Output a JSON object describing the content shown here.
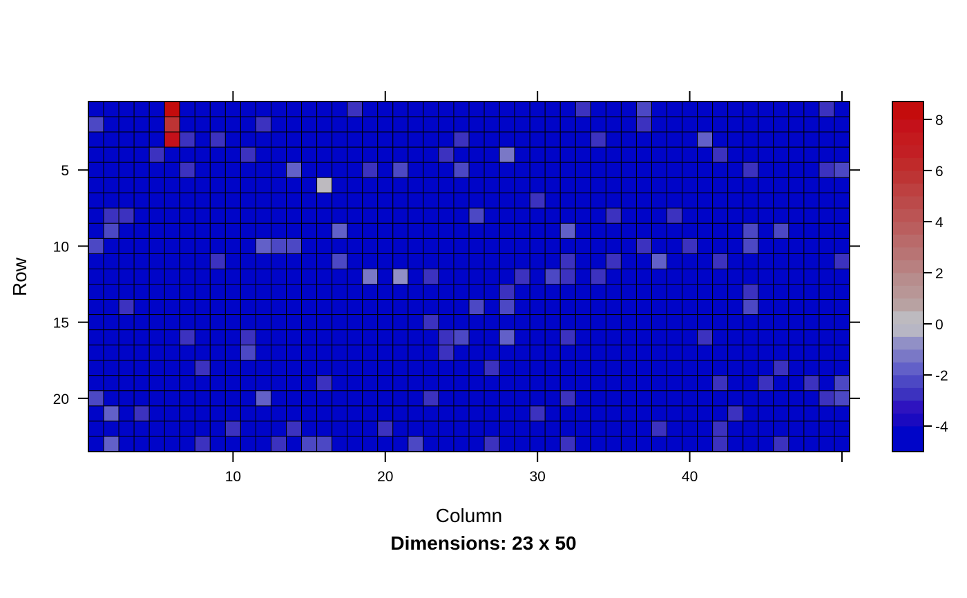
{
  "chart_data": {
    "type": "heatmap",
    "xlabel": "Column",
    "ylabel": "Row",
    "subtitle": "Dimensions: 23 x 50",
    "n_rows": 23,
    "n_cols": 50,
    "x_ticks": [
      10,
      20,
      30,
      40
    ],
    "y_ticks": [
      5,
      10,
      15,
      20
    ],
    "y_axis_reversed": true,
    "colorbar": {
      "range": [
        -5,
        8.7
      ],
      "ticks": [
        -4,
        -2,
        0,
        2,
        4,
        6,
        8
      ],
      "tick_labels": [
        "-4",
        "-2",
        "0",
        "2",
        "4",
        "6",
        "8"
      ],
      "levels": [
        {
          "from": -5.0,
          "to": -4.0,
          "color": "#0005c8"
        },
        {
          "from": -4.0,
          "to": -3.5,
          "color": "#1a0ac0"
        },
        {
          "from": -3.5,
          "to": -3.0,
          "color": "#2e13bf"
        },
        {
          "from": -3.0,
          "to": -2.5,
          "color": "#3c32bf"
        },
        {
          "from": -2.5,
          "to": -2.0,
          "color": "#4c48c4"
        },
        {
          "from": -2.0,
          "to": -1.5,
          "color": "#6260c8"
        },
        {
          "from": -1.5,
          "to": -1.0,
          "color": "#7a78c6"
        },
        {
          "from": -1.0,
          "to": -0.5,
          "color": "#9190c6"
        },
        {
          "from": -0.5,
          "to": 0.0,
          "color": "#b7b6c4"
        },
        {
          "from": 0.0,
          "to": 0.5,
          "color": "#bdbabf"
        },
        {
          "from": 0.5,
          "to": 1.0,
          "color": "#b8a2a2"
        },
        {
          "from": 1.0,
          "to": 1.5,
          "color": "#b89696"
        },
        {
          "from": 1.5,
          "to": 2.0,
          "color": "#b78d8d"
        },
        {
          "from": 2.0,
          "to": 2.5,
          "color": "#b88080"
        },
        {
          "from": 2.5,
          "to": 3.0,
          "color": "#b87474"
        },
        {
          "from": 3.0,
          "to": 3.5,
          "color": "#b96a6a"
        },
        {
          "from": 3.5,
          "to": 4.0,
          "color": "#ba5e5e"
        },
        {
          "from": 4.0,
          "to": 4.5,
          "color": "#bb5454"
        },
        {
          "from": 4.5,
          "to": 5.0,
          "color": "#bb4a4a"
        },
        {
          "from": 5.0,
          "to": 5.5,
          "color": "#bd4040"
        },
        {
          "from": 5.5,
          "to": 6.0,
          "color": "#bd3434"
        },
        {
          "from": 6.0,
          "to": 6.5,
          "color": "#c02a2a"
        },
        {
          "from": 6.5,
          "to": 7.0,
          "color": "#c21f24"
        },
        {
          "from": 7.0,
          "to": 7.5,
          "color": "#c41a1e"
        },
        {
          "from": 7.5,
          "to": 8.0,
          "color": "#c4111a"
        },
        {
          "from": 8.0,
          "to": 8.7,
          "color": "#c40c0c"
        }
      ]
    },
    "base_value": -4.3,
    "cells": [
      {
        "r": 1,
        "c": 6,
        "v": 8.5
      },
      {
        "r": 2,
        "c": 6,
        "v": 5.5
      },
      {
        "r": 3,
        "c": 6,
        "v": 7.5
      },
      {
        "r": 6,
        "c": 16,
        "v": 0.2
      },
      {
        "r": 4,
        "c": 28,
        "v": -1.2
      },
      {
        "r": 12,
        "c": 19,
        "v": -1.3
      },
      {
        "r": 12,
        "c": 21,
        "v": -0.8
      },
      {
        "r": 11,
        "c": 5,
        "v": -4.8
      },
      {
        "r": 1,
        "c": 18,
        "v": -2.6
      },
      {
        "r": 1,
        "c": 33,
        "v": -2.6
      },
      {
        "r": 1,
        "c": 37,
        "v": -2.4
      },
      {
        "r": 1,
        "c": 49,
        "v": -2.8
      },
      {
        "r": 2,
        "c": 1,
        "v": -2.5
      },
      {
        "r": 2,
        "c": 12,
        "v": -2.6
      },
      {
        "r": 2,
        "c": 37,
        "v": -2.6
      },
      {
        "r": 3,
        "c": 7,
        "v": -2.8
      },
      {
        "r": 3,
        "c": 9,
        "v": -2.6
      },
      {
        "r": 3,
        "c": 25,
        "v": -2.6
      },
      {
        "r": 3,
        "c": 34,
        "v": -2.6
      },
      {
        "r": 3,
        "c": 41,
        "v": -1.8
      },
      {
        "r": 4,
        "c": 5,
        "v": -2.7
      },
      {
        "r": 4,
        "c": 11,
        "v": -2.8
      },
      {
        "r": 4,
        "c": 24,
        "v": -2.8
      },
      {
        "r": 4,
        "c": 42,
        "v": -2.9
      },
      {
        "r": 5,
        "c": 7,
        "v": -2.6
      },
      {
        "r": 5,
        "c": 14,
        "v": -1.8
      },
      {
        "r": 5,
        "c": 19,
        "v": -2.6
      },
      {
        "r": 5,
        "c": 21,
        "v": -2.4
      },
      {
        "r": 5,
        "c": 25,
        "v": -2.2
      },
      {
        "r": 5,
        "c": 44,
        "v": -2.6
      },
      {
        "r": 5,
        "c": 49,
        "v": -2.7
      },
      {
        "r": 5,
        "c": 50,
        "v": -2.5
      },
      {
        "r": 7,
        "c": 30,
        "v": -2.9
      },
      {
        "r": 8,
        "c": 2,
        "v": -2.7
      },
      {
        "r": 8,
        "c": 3,
        "v": -2.6
      },
      {
        "r": 8,
        "c": 26,
        "v": -2.5
      },
      {
        "r": 8,
        "c": 35,
        "v": -2.8
      },
      {
        "r": 8,
        "c": 39,
        "v": -2.8
      },
      {
        "r": 9,
        "c": 2,
        "v": -2.4
      },
      {
        "r": 9,
        "c": 17,
        "v": -2.0
      },
      {
        "r": 9,
        "c": 32,
        "v": -2.0
      },
      {
        "r": 9,
        "c": 44,
        "v": -2.5
      },
      {
        "r": 9,
        "c": 46,
        "v": -2.4
      },
      {
        "r": 10,
        "c": 1,
        "v": -2.4
      },
      {
        "r": 10,
        "c": 12,
        "v": -1.8
      },
      {
        "r": 10,
        "c": 13,
        "v": -2.3
      },
      {
        "r": 10,
        "c": 14,
        "v": -2.2
      },
      {
        "r": 10,
        "c": 37,
        "v": -2.6
      },
      {
        "r": 10,
        "c": 40,
        "v": -2.8
      },
      {
        "r": 10,
        "c": 44,
        "v": -2.5
      },
      {
        "r": 11,
        "c": 9,
        "v": -2.7
      },
      {
        "r": 11,
        "c": 17,
        "v": -2.3
      },
      {
        "r": 11,
        "c": 32,
        "v": -2.6
      },
      {
        "r": 11,
        "c": 35,
        "v": -2.6
      },
      {
        "r": 11,
        "c": 38,
        "v": -1.8
      },
      {
        "r": 11,
        "c": 42,
        "v": -2.7
      },
      {
        "r": 11,
        "c": 50,
        "v": -2.6
      },
      {
        "r": 12,
        "c": 23,
        "v": -2.8
      },
      {
        "r": 12,
        "c": 29,
        "v": -2.9
      },
      {
        "r": 12,
        "c": 31,
        "v": -2.4
      },
      {
        "r": 12,
        "c": 32,
        "v": -2.7
      },
      {
        "r": 12,
        "c": 34,
        "v": -2.6
      },
      {
        "r": 13,
        "c": 28,
        "v": -2.7
      },
      {
        "r": 13,
        "c": 44,
        "v": -2.6
      },
      {
        "r": 14,
        "c": 3,
        "v": -2.6
      },
      {
        "r": 14,
        "c": 26,
        "v": -2.5
      },
      {
        "r": 14,
        "c": 28,
        "v": -2.5
      },
      {
        "r": 14,
        "c": 44,
        "v": -2.5
      },
      {
        "r": 15,
        "c": 23,
        "v": -2.8
      },
      {
        "r": 16,
        "c": 7,
        "v": -2.6
      },
      {
        "r": 16,
        "c": 11,
        "v": -2.6
      },
      {
        "r": 16,
        "c": 24,
        "v": -2.6
      },
      {
        "r": 16,
        "c": 25,
        "v": -2.4
      },
      {
        "r": 16,
        "c": 28,
        "v": -2.0
      },
      {
        "r": 16,
        "c": 32,
        "v": -2.6
      },
      {
        "r": 16,
        "c": 41,
        "v": -2.6
      },
      {
        "r": 17,
        "c": 11,
        "v": -2.5
      },
      {
        "r": 17,
        "c": 24,
        "v": -2.7
      },
      {
        "r": 18,
        "c": 8,
        "v": -2.8
      },
      {
        "r": 18,
        "c": 27,
        "v": -2.8
      },
      {
        "r": 18,
        "c": 46,
        "v": -2.8
      },
      {
        "r": 19,
        "c": 16,
        "v": -2.7
      },
      {
        "r": 19,
        "c": 42,
        "v": -2.8
      },
      {
        "r": 19,
        "c": 45,
        "v": -2.6
      },
      {
        "r": 19,
        "c": 48,
        "v": -2.6
      },
      {
        "r": 19,
        "c": 50,
        "v": -2.5
      },
      {
        "r": 20,
        "c": 1,
        "v": -2.4
      },
      {
        "r": 20,
        "c": 12,
        "v": -1.9
      },
      {
        "r": 20,
        "c": 23,
        "v": -2.7
      },
      {
        "r": 20,
        "c": 32,
        "v": -2.7
      },
      {
        "r": 20,
        "c": 49,
        "v": -2.7
      },
      {
        "r": 20,
        "c": 50,
        "v": -2.4
      },
      {
        "r": 21,
        "c": 2,
        "v": -1.8
      },
      {
        "r": 21,
        "c": 4,
        "v": -2.6
      },
      {
        "r": 21,
        "c": 30,
        "v": -2.7
      },
      {
        "r": 21,
        "c": 43,
        "v": -2.8
      },
      {
        "r": 22,
        "c": 10,
        "v": -2.6
      },
      {
        "r": 22,
        "c": 14,
        "v": -2.8
      },
      {
        "r": 22,
        "c": 20,
        "v": -2.6
      },
      {
        "r": 22,
        "c": 38,
        "v": -2.8
      },
      {
        "r": 22,
        "c": 42,
        "v": -2.8
      },
      {
        "r": 23,
        "c": 2,
        "v": -2.0
      },
      {
        "r": 23,
        "c": 8,
        "v": -2.6
      },
      {
        "r": 23,
        "c": 13,
        "v": -2.6
      },
      {
        "r": 23,
        "c": 15,
        "v": -2.2
      },
      {
        "r": 23,
        "c": 16,
        "v": -2.1
      },
      {
        "r": 23,
        "c": 22,
        "v": -2.2
      },
      {
        "r": 23,
        "c": 27,
        "v": -2.6
      },
      {
        "r": 23,
        "c": 32,
        "v": -2.6
      },
      {
        "r": 23,
        "c": 42,
        "v": -2.6
      },
      {
        "r": 23,
        "c": 46,
        "v": -2.6
      }
    ]
  }
}
